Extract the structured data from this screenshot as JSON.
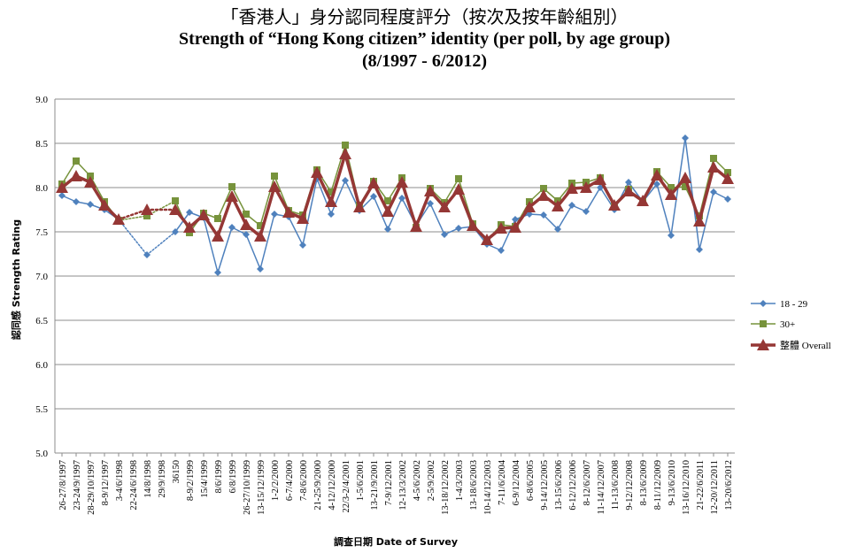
{
  "chart_data": {
    "type": "line",
    "title_zh": "「香港人」身分認同程度評分（按次及按年齡組別）",
    "title_en_line1": "Strength of “Hong Kong citizen” identity (per poll, by age group)",
    "title_en_line2": "(8/1997 - 6/2012)",
    "ylabel": "認同感 Strength Rating",
    "xlabel": "調查日期 Date of Survey",
    "ylim": [
      5.0,
      9.0
    ],
    "yticks": [
      "5.0",
      "5.5",
      "6.0",
      "6.5",
      "7.0",
      "7.5",
      "8.0",
      "8.5",
      "9.0"
    ],
    "grid": true,
    "legend_position": "right",
    "categories": [
      "26-27/8/1997",
      "23-24/9/1997",
      "28-29/10/1997",
      "8-9/12/1997",
      "3-4/6/1998",
      "22-24/6/1998",
      "14/8/1998",
      "29/9/1998",
      "36150",
      "8-9/2/1999",
      "15/4/1999",
      "8/6/1999",
      "6/8/1999",
      "26-27/10/1999",
      "13-15/12/1999",
      "1-2/2/2000",
      "6-7/4/2000",
      "7-8/6/2000",
      "21-25/9/2000",
      "4-12/12/2000",
      "22/3-2/4/2001",
      "1-5/6/2001",
      "13-21/9/2001",
      "7-9/12/2001",
      "12-13/3/2002",
      "4-5/6/2002",
      "2-5/9/2002",
      "13-18/12/2002",
      "1-4/3/2003",
      "13-18/6/2003",
      "10-14/12/2003",
      "7-11/6/2004",
      "6-9/12/2004",
      "6-8/6/2005",
      "9-14/12/2005",
      "13-15/6/2006",
      "6-12/12/2006",
      "8-12/6/2007",
      "11-14/12/2007",
      "11-13/6/2008",
      "9-12/12/2008",
      "8-13/6/2009",
      "8-11/12/2009",
      "9-13/6/2010",
      "13-16/12/2010",
      "21-22/6/2011",
      "12-20/12/2011",
      "13-20/6/2012"
    ],
    "series": [
      {
        "name": "18 - 29",
        "color": "#4f81bd",
        "marker": "diamond",
        "line_width": 1.5,
        "values": [
          7.91,
          7.84,
          7.81,
          7.75,
          7.64,
          null,
          7.24,
          null,
          7.5,
          7.72,
          7.66,
          7.04,
          7.55,
          7.47,
          7.08,
          7.7,
          7.67,
          7.35,
          8.1,
          7.7,
          8.08,
          7.74,
          7.9,
          7.53,
          7.88,
          7.57,
          7.82,
          7.47,
          7.54,
          7.56,
          7.36,
          7.29,
          7.64,
          7.7,
          7.69,
          7.53,
          7.8,
          7.73,
          8.0,
          7.75,
          8.06,
          7.84,
          8.04,
          7.46,
          8.56,
          7.3,
          7.95,
          7.87
        ]
      },
      {
        "name": "30+",
        "color": "#77933c",
        "marker": "square",
        "line_width": 1.5,
        "values": [
          8.04,
          8.3,
          8.13,
          7.84,
          7.63,
          null,
          7.68,
          null,
          7.85,
          7.49,
          7.71,
          7.65,
          8.01,
          7.7,
          7.57,
          8.13,
          7.74,
          7.69,
          8.2,
          7.95,
          8.48,
          7.8,
          8.07,
          7.85,
          8.11,
          7.55,
          7.99,
          7.83,
          8.1,
          7.59,
          7.4,
          7.58,
          7.56,
          7.84,
          7.99,
          7.85,
          8.05,
          8.06,
          8.11,
          7.8,
          7.98,
          7.84,
          8.18,
          8.0,
          8.01,
          7.68,
          8.33,
          8.17
        ]
      },
      {
        "name": "整體 Overall",
        "color": "#953735",
        "marker": "triangle",
        "line_width": 3.5,
        "values": [
          8.0,
          8.13,
          8.06,
          7.8,
          7.64,
          null,
          7.75,
          null,
          7.75,
          7.55,
          7.69,
          7.45,
          7.9,
          7.58,
          7.45,
          8.01,
          7.72,
          7.65,
          8.17,
          7.84,
          8.38,
          7.78,
          8.05,
          7.73,
          8.06,
          7.56,
          7.96,
          7.78,
          7.98,
          7.57,
          7.41,
          7.54,
          7.55,
          7.78,
          7.91,
          7.79,
          7.99,
          8.0,
          8.09,
          7.8,
          7.96,
          7.85,
          8.14,
          7.92,
          8.11,
          7.62,
          8.23,
          8.1
        ]
      }
    ]
  }
}
